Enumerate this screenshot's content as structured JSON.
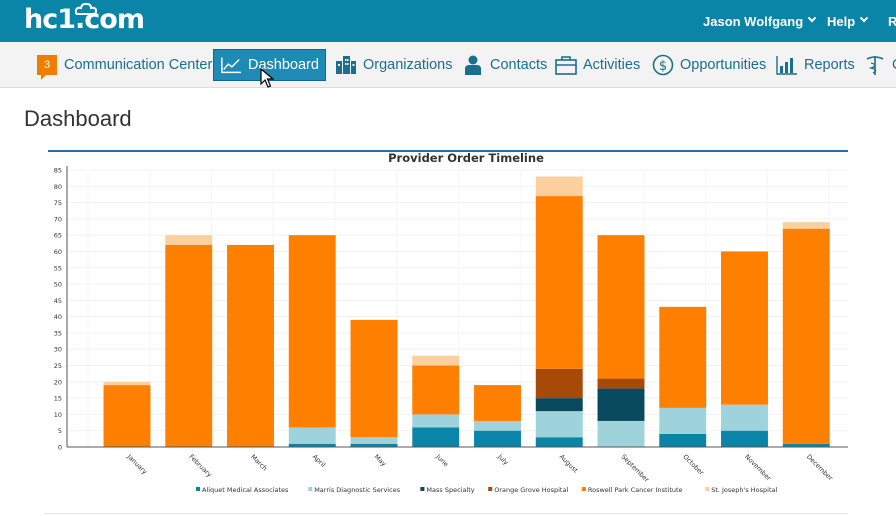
{
  "header": {
    "logo": "hc1.com",
    "user_name": "Jason Wolfgang",
    "help_label": "Help",
    "extra_label": "R"
  },
  "nav": {
    "items": [
      {
        "label": "Communication Center",
        "badge": "3",
        "icon": "speech-badge-icon"
      },
      {
        "label": "Dashboard",
        "icon": "line-chart-icon",
        "active": true
      },
      {
        "label": "Organizations",
        "icon": "buildings-icon"
      },
      {
        "label": "Contacts",
        "icon": "person-icon"
      },
      {
        "label": "Activities",
        "icon": "briefcase-icon"
      },
      {
        "label": "Opportunities",
        "icon": "dollar-circle-icon"
      },
      {
        "label": "Reports",
        "icon": "bar-chart-icon"
      },
      {
        "label": "C",
        "icon": "caduceus-icon"
      }
    ]
  },
  "page": {
    "title": "Dashboard"
  },
  "colors": {
    "accent": "#0a84a7",
    "active_tab": "#1f8ab4",
    "series": [
      "#0a84a7",
      "#9fd3dc",
      "#08495e",
      "#a84a07",
      "#ff7f00",
      "#fccf9f"
    ]
  },
  "chart_data": {
    "type": "bar",
    "stacked": true,
    "title": "Provider Order Timeline",
    "categories": [
      "January",
      "February",
      "March",
      "April",
      "May",
      "June",
      "July",
      "August",
      "September",
      "October",
      "November",
      "December"
    ],
    "ylim": [
      0,
      85
    ],
    "yticks": [
      0,
      5,
      10,
      15,
      20,
      25,
      30,
      35,
      40,
      45,
      50,
      55,
      60,
      65,
      70,
      75,
      80,
      85
    ],
    "legend_position": "bottom",
    "series": [
      {
        "name": "Aliquet Medical Associates",
        "values": [
          0,
          0,
          0,
          1,
          1,
          6,
          5,
          3,
          0,
          4,
          5,
          1
        ]
      },
      {
        "name": "Marris Diagnostic Services",
        "values": [
          0,
          0,
          0,
          5,
          2,
          4,
          3,
          8,
          8,
          8,
          8,
          0
        ]
      },
      {
        "name": "Mass Specialty",
        "values": [
          0,
          0,
          0,
          0,
          0,
          0,
          0,
          4,
          10,
          0,
          0,
          0
        ]
      },
      {
        "name": "Orange Grove Hospital",
        "values": [
          0,
          0,
          0,
          0,
          0,
          0,
          0,
          9,
          3,
          0,
          0,
          0
        ]
      },
      {
        "name": "Roswell Park Cancer Institute",
        "values": [
          19,
          62,
          62,
          59,
          36,
          15,
          11,
          53,
          44,
          31,
          47,
          66
        ]
      },
      {
        "name": "St. Joseph's Hospital",
        "values": [
          1,
          3,
          0,
          0,
          0,
          3,
          0,
          6,
          0,
          0,
          0,
          2
        ]
      }
    ]
  }
}
